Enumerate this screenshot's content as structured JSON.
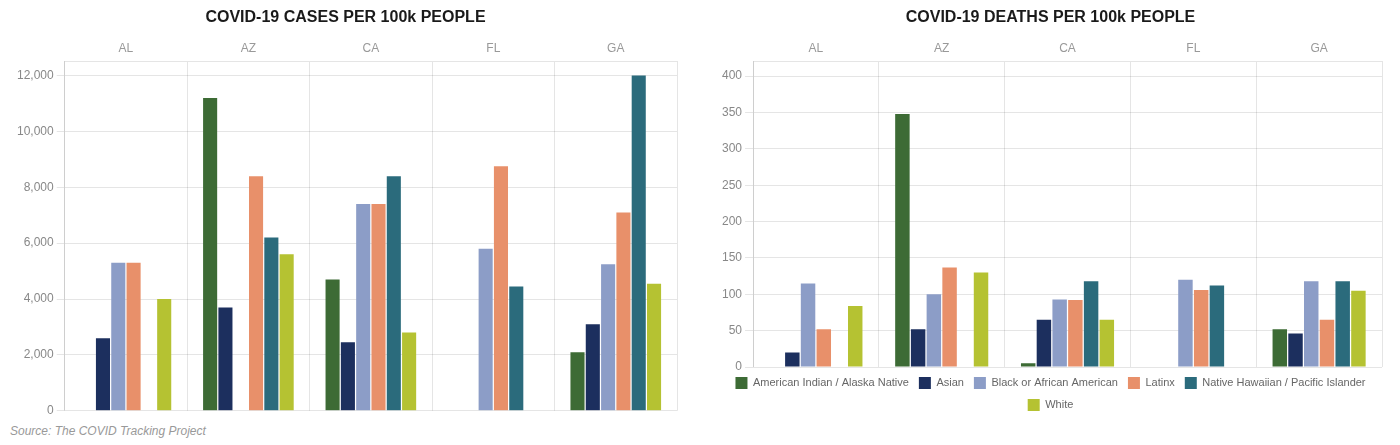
{
  "chart_data": [
    {
      "type": "bar",
      "title": "COVID-19 CASES PER 100k PEOPLE",
      "categories": [
        "AL",
        "AZ",
        "CA",
        "FL",
        "GA"
      ],
      "series": [
        {
          "name": "American Indian / Alaska Native",
          "color": "#3d6b35",
          "values": [
            null,
            11200,
            4700,
            null,
            2100
          ]
        },
        {
          "name": "Asian",
          "color": "#1c2f5e",
          "values": [
            2600,
            3700,
            2450,
            null,
            3100
          ]
        },
        {
          "name": "Black or African American",
          "color": "#8c9dc7",
          "values": [
            5300,
            null,
            7400,
            5800,
            5250
          ]
        },
        {
          "name": "Latinx",
          "color": "#e8906a",
          "values": [
            5300,
            8400,
            7400,
            8750,
            7100
          ]
        },
        {
          "name": "Native Hawaiian / Pacific Islander",
          "color": "#2b6b7c",
          "values": [
            null,
            6200,
            8400,
            4450,
            12000
          ]
        },
        {
          "name": "White",
          "color": "#b5c232",
          "values": [
            4000,
            5600,
            2800,
            null,
            4550
          ]
        }
      ],
      "ylim": [
        0,
        12500
      ],
      "yticks": [
        0,
        {
          "value": 2000,
          "label": "2,000"
        },
        {
          "value": 4000,
          "label": "4,000"
        },
        {
          "value": 6000,
          "label": "6,000"
        },
        {
          "value": 8000,
          "label": "8,000"
        },
        {
          "value": 10000,
          "label": "10,000"
        },
        {
          "value": 12000,
          "label": "12,000"
        }
      ],
      "grid": true,
      "annotation": "Source: The COVID Tracking Project"
    },
    {
      "type": "bar",
      "title": "COVID-19 DEATHS PER 100k PEOPLE",
      "categories": [
        "AL",
        "AZ",
        "CA",
        "FL",
        "GA"
      ],
      "series": [
        {
          "name": "American Indian / Alaska Native",
          "color": "#3d6b35",
          "values": [
            null,
            348,
            5,
            null,
            52
          ]
        },
        {
          "name": "Asian",
          "color": "#1c2f5e",
          "values": [
            20,
            52,
            65,
            null,
            46
          ]
        },
        {
          "name": "Black or African American",
          "color": "#8c9dc7",
          "values": [
            115,
            100,
            93,
            120,
            118
          ]
        },
        {
          "name": "Latinx",
          "color": "#e8906a",
          "values": [
            52,
            137,
            92,
            106,
            65
          ]
        },
        {
          "name": "Native Hawaiian / Pacific Islander",
          "color": "#2b6b7c",
          "values": [
            null,
            null,
            118,
            112,
            118
          ]
        },
        {
          "name": "White",
          "color": "#b5c232",
          "values": [
            84,
            130,
            65,
            null,
            105
          ]
        }
      ],
      "ylim": [
        0,
        420
      ],
      "yticks": [
        0,
        50,
        100,
        150,
        200,
        250,
        300,
        350,
        400
      ],
      "grid": true,
      "legend": "bottom"
    }
  ]
}
